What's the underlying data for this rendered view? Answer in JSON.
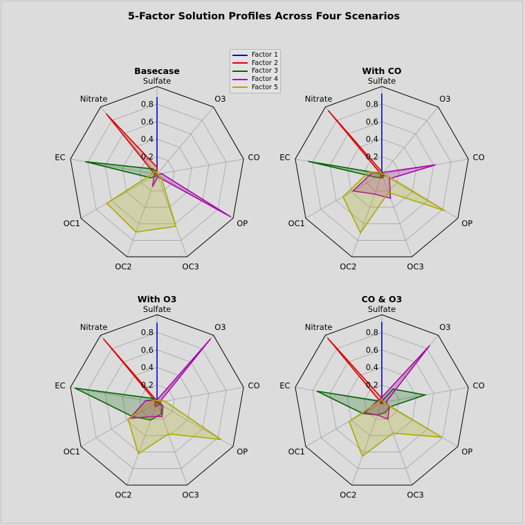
{
  "title": "5-Factor Solution Profiles Across Four Scenarios",
  "chart_data": {
    "type": "radar",
    "variables": [
      "Sulfate",
      "O3",
      "CO",
      "OP",
      "OC3",
      "OC2",
      "OC1",
      "EC",
      "Nitrate"
    ],
    "radial_ticks": [
      "0.2",
      "0.4",
      "0.6",
      "0.8"
    ],
    "rlim": [
      0,
      1
    ],
    "grid": true,
    "legend": {
      "placement": "top-center",
      "entries": [
        "Factor 1",
        "Factor 2",
        "Factor 3",
        "Factor 4",
        "Factor 5"
      ]
    },
    "colors": [
      "#0000dd",
      "#dd0000",
      "#006600",
      "#aa00aa",
      "#aaaa00"
    ],
    "subplots": [
      {
        "title": "Basecase",
        "series": [
          {
            "name": "Factor 1",
            "values": [
              0.88,
              0,
              0,
              0,
              0,
              0,
              0,
              0,
              0
            ]
          },
          {
            "name": "Factor 2",
            "values": [
              0.08,
              0,
              0,
              0,
              0,
              0,
              0,
              0.03,
              0.9
            ]
          },
          {
            "name": "Factor 3",
            "values": [
              0.03,
              0,
              0,
              0,
              0.02,
              0.02,
              0.08,
              0.83,
              0.08
            ]
          },
          {
            "name": "Factor 4",
            "values": [
              0.02,
              0,
              0.05,
              0.97,
              0.03,
              0.15,
              0.04,
              0.03,
              0.02
            ]
          },
          {
            "name": "Factor 5",
            "values": [
              0.03,
              0,
              0.02,
              0.05,
              0.63,
              0.7,
              0.66,
              0.05,
              0.04
            ]
          }
        ]
      },
      {
        "title": "With CO",
        "series": [
          {
            "name": "Factor 1",
            "values": [
              0.92,
              0,
              0,
              0,
              0,
              0,
              0,
              0,
              0
            ]
          },
          {
            "name": "Factor 2",
            "values": [
              0.03,
              0.01,
              0,
              0.04,
              0.01,
              0.05,
              0.01,
              0.01,
              0.95
            ]
          },
          {
            "name": "Factor 3",
            "values": [
              0.03,
              0.02,
              0.01,
              0.02,
              0.04,
              0.04,
              0.07,
              0.85,
              0.01
            ]
          },
          {
            "name": "Factor 4",
            "values": [
              0.01,
              0.03,
              0.62,
              0.1,
              0.29,
              0.24,
              0.38,
              0.11,
              0.02
            ]
          },
          {
            "name": "Factor 5",
            "values": [
              0.01,
              0,
              0.03,
              0.83,
              0.22,
              0.71,
              0.51,
              0.15,
              0.03
            ]
          }
        ]
      },
      {
        "title": "With O3",
        "series": [
          {
            "name": "Factor 1",
            "values": [
              0.91,
              0,
              0,
              0,
              0,
              0,
              0,
              0,
              0
            ]
          },
          {
            "name": "Factor 2",
            "values": [
              0.02,
              0.02,
              0.01,
              0.04,
              0.03,
              0.05,
              0.03,
              0.01,
              0.95
            ]
          },
          {
            "name": "Factor 3",
            "values": [
              0.03,
              0.01,
              0.01,
              0.06,
              0.14,
              0.21,
              0.32,
              0.95,
              0.06
            ]
          },
          {
            "name": "Factor 4",
            "values": [
              0.03,
              0.95,
              0.03,
              0.08,
              0.17,
              0.17,
              0.36,
              0.13,
              0.04
            ]
          },
          {
            "name": "Factor 5",
            "values": [
              0.02,
              0.03,
              0.09,
              0.84,
              0.38,
              0.62,
              0.38,
              0.07,
              0.04
            ]
          }
        ]
      },
      {
        "title": "CO & O3",
        "series": [
          {
            "name": "Factor 1",
            "values": [
              0.92,
              0,
              0,
              0,
              0,
              0,
              0,
              0,
              0
            ]
          },
          {
            "name": "Factor 2",
            "values": [
              0.05,
              0.03,
              0,
              0.02,
              0.01,
              0.01,
              0.02,
              0.01,
              0.96
            ]
          },
          {
            "name": "Factor 3",
            "values": [
              0.02,
              0.2,
              0.5,
              0.1,
              0.12,
              0.15,
              0.25,
              0.75,
              0.02
            ]
          },
          {
            "name": "Factor 4",
            "values": [
              0.06,
              0.85,
              0.05,
              0.1,
              0.2,
              0.15,
              0.23,
              0.06,
              0.04
            ]
          },
          {
            "name": "Factor 5",
            "values": [
              0.04,
              0.02,
              0.02,
              0.79,
              0.37,
              0.65,
              0.43,
              0.04,
              0.03
            ]
          }
        ]
      }
    ]
  }
}
